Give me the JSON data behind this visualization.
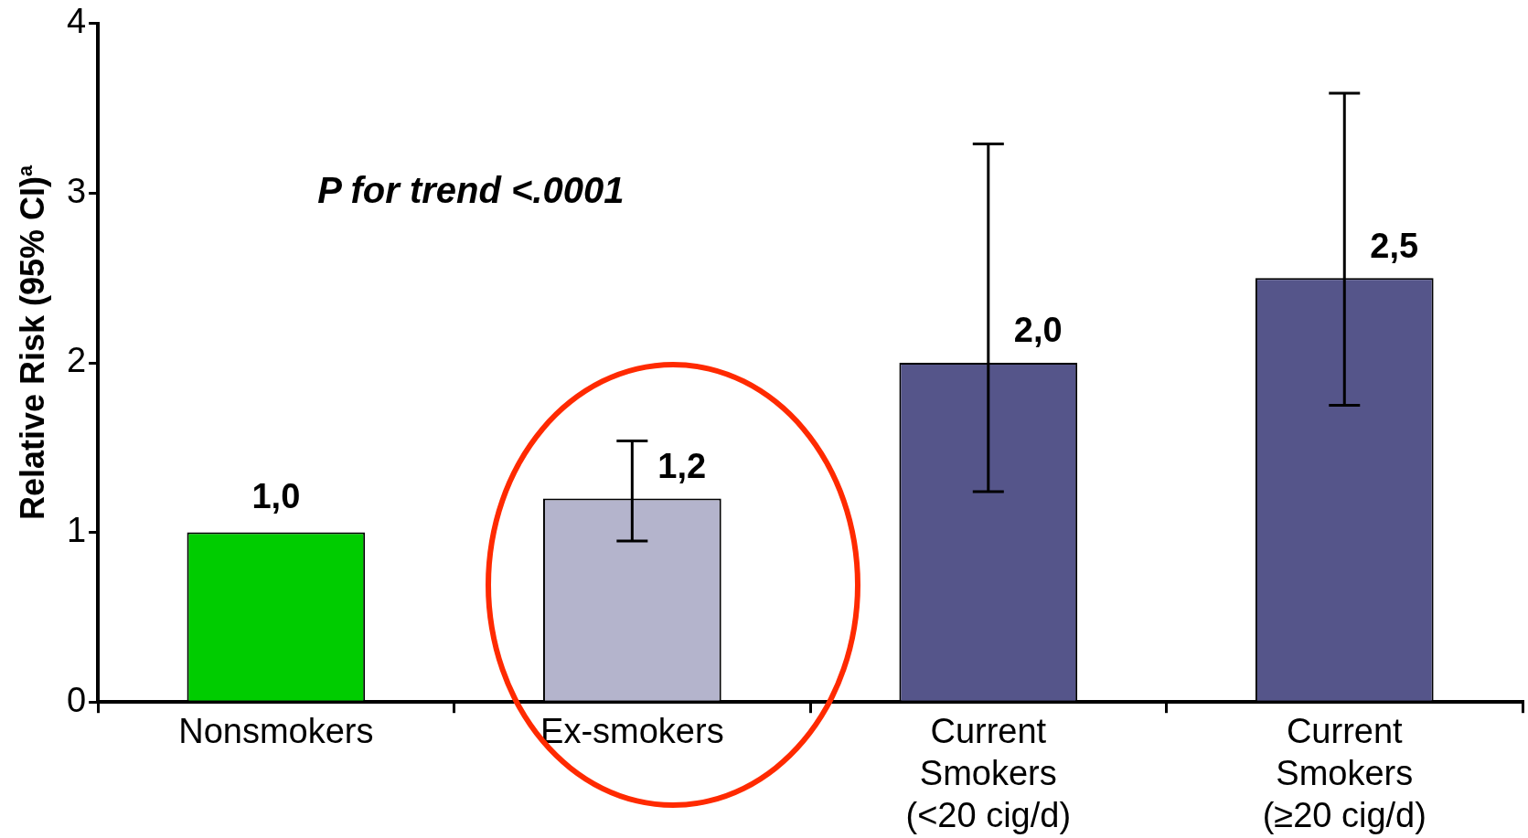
{
  "chart_data": {
    "type": "bar",
    "ylabel": "Relative Risk (95% CI)$^{a}$",
    "annotations": [
      "P for trend <.0001"
    ],
    "categories": [
      "Nonsmokers",
      "Ex-smokers",
      "Current Smokers (<20 cig/d)",
      "Current Smokers (≥20 cig/d)"
    ],
    "values": [
      1.0,
      1.2,
      2.0,
      2.5
    ],
    "colors": [
      "#00cc00",
      "#b4b4cc",
      "#55558a",
      "#55558a"
    ],
    "errors": [
      null,
      [
        0.95,
        1.54
      ],
      [
        1.24,
        3.29
      ],
      [
        1.75,
        3.59
      ]
    ],
    "value_labels": [
      "1,0",
      "1,2",
      "2,0",
      "2,5"
    ],
    "ylim": [
      0,
      4
    ],
    "yticks": [
      0,
      1,
      2,
      3,
      4
    ],
    "grid": false,
    "legend": false
  }
}
